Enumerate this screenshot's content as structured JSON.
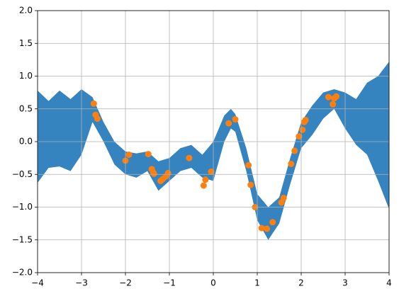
{
  "chart_data": {
    "type": "fill_between",
    "x": [
      -4,
      -3.75,
      -3.5,
      -3.25,
      -3,
      -2.75,
      -2.5,
      -2.25,
      -2,
      -1.75,
      -1.5,
      -1.25,
      -1,
      -0.75,
      -0.5,
      -0.25,
      0,
      0.25,
      0.4,
      0.5,
      0.75,
      1,
      1.25,
      1.5,
      1.75,
      2,
      2.25,
      2.5,
      2.75,
      3,
      3.25,
      3.5,
      3.75,
      4
    ],
    "upper": [
      0.78,
      0.62,
      0.78,
      0.65,
      0.8,
      0.68,
      0.3,
      0.0,
      -0.15,
      -0.18,
      -0.15,
      -0.3,
      -0.25,
      -0.1,
      -0.05,
      -0.2,
      0.0,
      0.4,
      0.5,
      0.42,
      -0.1,
      -0.8,
      -1.0,
      -0.85,
      -0.25,
      0.3,
      0.55,
      0.75,
      0.8,
      0.75,
      0.65,
      0.9,
      1.0,
      1.22
    ],
    "lower": [
      -0.63,
      -0.4,
      -0.38,
      -0.45,
      -0.2,
      0.3,
      0.0,
      -0.35,
      -0.5,
      -0.55,
      -0.45,
      -0.75,
      -0.6,
      -0.45,
      -0.4,
      -0.55,
      -0.6,
      0.0,
      0.2,
      0.15,
      -0.45,
      -1.2,
      -1.5,
      -1.25,
      -0.65,
      -0.1,
      0.1,
      0.35,
      0.5,
      0.2,
      -0.05,
      -0.2,
      -0.6,
      -1.03
    ],
    "color": "#3584bf",
    "scatter": {
      "color": "#ff7f0e",
      "x": [
        -2.72,
        -2.68,
        -2.64,
        -2.0,
        -1.92,
        -1.48,
        -1.4,
        -1.37,
        -1.35,
        -1.2,
        -1.15,
        -1.08,
        -1.03,
        -0.55,
        -0.22,
        -0.18,
        -0.05,
        0.35,
        0.5,
        0.8,
        0.85,
        0.95,
        1.1,
        1.22,
        1.35,
        1.55,
        1.6,
        1.77,
        1.85,
        1.95,
        2.03,
        2.07,
        2.1,
        2.62,
        2.72,
        2.75,
        2.8
      ],
      "y": [
        0.58,
        0.41,
        0.35,
        -0.29,
        -0.2,
        -0.19,
        -0.42,
        -0.47,
        -0.49,
        -0.6,
        -0.57,
        -0.53,
        -0.48,
        -0.25,
        -0.67,
        -0.58,
        -0.46,
        0.28,
        0.34,
        -0.36,
        -0.66,
        -1.0,
        -1.32,
        -1.33,
        -1.23,
        -0.93,
        -0.86,
        -0.34,
        -0.14,
        0.08,
        0.18,
        0.3,
        0.33,
        0.68,
        0.57,
        0.66,
        0.69
      ]
    },
    "xlim": [
      -4,
      4
    ],
    "ylim": [
      -2,
      2
    ],
    "xticks": [
      {
        "value": -4,
        "label": "−4"
      },
      {
        "value": -3,
        "label": "−3"
      },
      {
        "value": -2,
        "label": "−2"
      },
      {
        "value": -1,
        "label": "−1"
      },
      0,
      1,
      2,
      3,
      4
    ],
    "yticks": [
      {
        "value": -2,
        "label": "−2.0"
      },
      {
        "value": -1.5,
        "label": "−1.5"
      },
      {
        "value": -1,
        "label": "−1.0"
      },
      {
        "value": -0.5,
        "label": "−0.5"
      },
      {
        "value": 0,
        "label": "0.0"
      },
      {
        "value": 0.5,
        "label": "0.5"
      },
      {
        "value": 1,
        "label": "1.0"
      },
      {
        "value": 1.5,
        "label": "1.5"
      },
      {
        "value": 2,
        "label": "2.0"
      }
    ],
    "grid": true
  }
}
